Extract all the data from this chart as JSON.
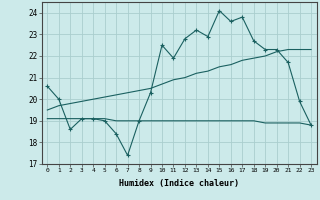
{
  "xlabel": "Humidex (Indice chaleur)",
  "bg_color": "#cceaea",
  "grid_color": "#aacece",
  "line_color": "#1a6060",
  "xlim": [
    -0.5,
    23.5
  ],
  "ylim": [
    17,
    24.5
  ],
  "yticks": [
    17,
    18,
    19,
    20,
    21,
    22,
    23,
    24
  ],
  "xticks": [
    0,
    1,
    2,
    3,
    4,
    5,
    6,
    7,
    8,
    9,
    10,
    11,
    12,
    13,
    14,
    15,
    16,
    17,
    18,
    19,
    20,
    21,
    22,
    23
  ],
  "series1_x": [
    0,
    1,
    2,
    3,
    4,
    5,
    6,
    7,
    8,
    9,
    10,
    11,
    12,
    13,
    14,
    15,
    16,
    17,
    18,
    19,
    20,
    21,
    22,
    23
  ],
  "series1_y": [
    20.6,
    20.0,
    18.6,
    19.1,
    19.1,
    19.0,
    18.4,
    17.4,
    19.0,
    20.3,
    22.5,
    21.9,
    22.8,
    23.2,
    22.9,
    24.1,
    23.6,
    23.8,
    22.7,
    22.3,
    22.3,
    21.7,
    19.9,
    18.8
  ],
  "series2_x": [
    0,
    1,
    2,
    3,
    4,
    5,
    6,
    7,
    8,
    9,
    10,
    11,
    12,
    13,
    14,
    15,
    16,
    17,
    18,
    19,
    20,
    21,
    22,
    23
  ],
  "series2_y": [
    19.1,
    19.1,
    19.1,
    19.1,
    19.1,
    19.1,
    19.0,
    19.0,
    19.0,
    19.0,
    19.0,
    19.0,
    19.0,
    19.0,
    19.0,
    19.0,
    19.0,
    19.0,
    19.0,
    18.9,
    18.9,
    18.9,
    18.9,
    18.8
  ],
  "series3_x": [
    0,
    1,
    2,
    3,
    4,
    5,
    6,
    7,
    8,
    9,
    10,
    11,
    12,
    13,
    14,
    15,
    16,
    17,
    18,
    19,
    20,
    21,
    22,
    23
  ],
  "series3_y": [
    19.5,
    19.7,
    19.8,
    19.9,
    20.0,
    20.1,
    20.2,
    20.3,
    20.4,
    20.5,
    20.7,
    20.9,
    21.0,
    21.2,
    21.3,
    21.5,
    21.6,
    21.8,
    21.9,
    22.0,
    22.2,
    22.3,
    22.3,
    22.3
  ]
}
